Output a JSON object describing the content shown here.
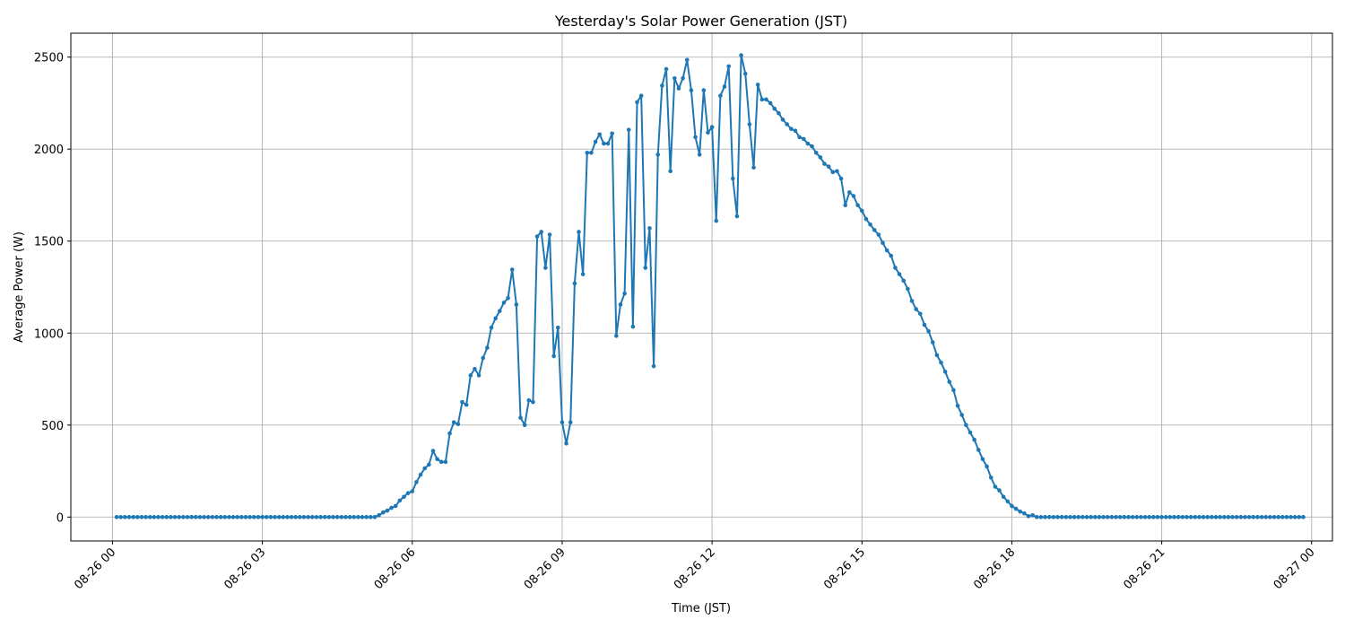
{
  "chart_data": {
    "type": "line",
    "title": "Yesterday's Solar Power Generation (JST)",
    "xlabel": "Time (JST)",
    "ylabel": "Average Power (W)",
    "x_start": "08-26 00:05",
    "x_interval_minutes": 5,
    "xlim": [
      "08-25 23:10",
      "08-27 00:25"
    ],
    "ylim": [
      -130,
      2630
    ],
    "x_ticks": [
      "08-26 00",
      "08-26 03",
      "08-26 06",
      "08-26 09",
      "08-26 12",
      "08-26 15",
      "08-26 18",
      "08-26 21",
      "08-27 00"
    ],
    "y_ticks": [
      0,
      500,
      1000,
      1500,
      2000,
      2500
    ],
    "grid": true,
    "line_color": "#1f77b4",
    "series": [
      {
        "name": "",
        "values": [
          0,
          0,
          0,
          0,
          0,
          0,
          0,
          0,
          0,
          0,
          0,
          0,
          0,
          0,
          0,
          0,
          0,
          0,
          0,
          0,
          0,
          0,
          0,
          0,
          0,
          0,
          0,
          0,
          0,
          0,
          0,
          0,
          0,
          0,
          0,
          0,
          0,
          0,
          0,
          0,
          0,
          0,
          0,
          0,
          0,
          0,
          0,
          0,
          0,
          0,
          0,
          0,
          0,
          0,
          0,
          0,
          0,
          0,
          0,
          0,
          0,
          0,
          0,
          10,
          25,
          35,
          50,
          60,
          90,
          110,
          130,
          140,
          190,
          230,
          265,
          285,
          360,
          315,
          300,
          300,
          455,
          515,
          505,
          625,
          610,
          770,
          805,
          770,
          865,
          920,
          1030,
          1080,
          1120,
          1165,
          1190,
          1345,
          1155,
          540,
          500,
          635,
          625,
          1525,
          1550,
          1355,
          1535,
          875,
          1030,
          515,
          400,
          515,
          1270,
          1550,
          1320,
          1980,
          1980,
          2040,
          2080,
          2030,
          2030,
          2085,
          985,
          1155,
          1215,
          2105,
          1035,
          2255,
          2290,
          1355,
          1570,
          820,
          1970,
          2345,
          2435,
          1880,
          2385,
          2330,
          2385,
          2485,
          2320,
          2065,
          1970,
          2320,
          2090,
          2120,
          1610,
          2290,
          2340,
          2450,
          1840,
          1635,
          2510,
          2410,
          2135,
          1900,
          2350,
          2270,
          2270,
          2250,
          2220,
          2195,
          2160,
          2135,
          2110,
          2100,
          2065,
          2055,
          2030,
          2015,
          1980,
          1955,
          1920,
          1905,
          1875,
          1880,
          1840,
          1695,
          1765,
          1745,
          1695,
          1665,
          1620,
          1590,
          1560,
          1535,
          1490,
          1450,
          1420,
          1355,
          1320,
          1285,
          1240,
          1175,
          1130,
          1105,
          1045,
          1010,
          950,
          880,
          840,
          790,
          735,
          690,
          605,
          555,
          500,
          460,
          420,
          365,
          315,
          275,
          215,
          165,
          145,
          110,
          85,
          60,
          45,
          30,
          20,
          5,
          10,
          0,
          0,
          0,
          0,
          0,
          0,
          0,
          0,
          0,
          0,
          0,
          0,
          0,
          0,
          0,
          0,
          0,
          0,
          0,
          0,
          0,
          0,
          0,
          0,
          0,
          0,
          0,
          0,
          0,
          0,
          0,
          0,
          0,
          0,
          0,
          0,
          0,
          0,
          0,
          0,
          0,
          0,
          0,
          0,
          0,
          0,
          0,
          0,
          0,
          0,
          0,
          0,
          0,
          0,
          0,
          0,
          0,
          0,
          0,
          0,
          0,
          0,
          0,
          0,
          0
        ]
      }
    ]
  }
}
